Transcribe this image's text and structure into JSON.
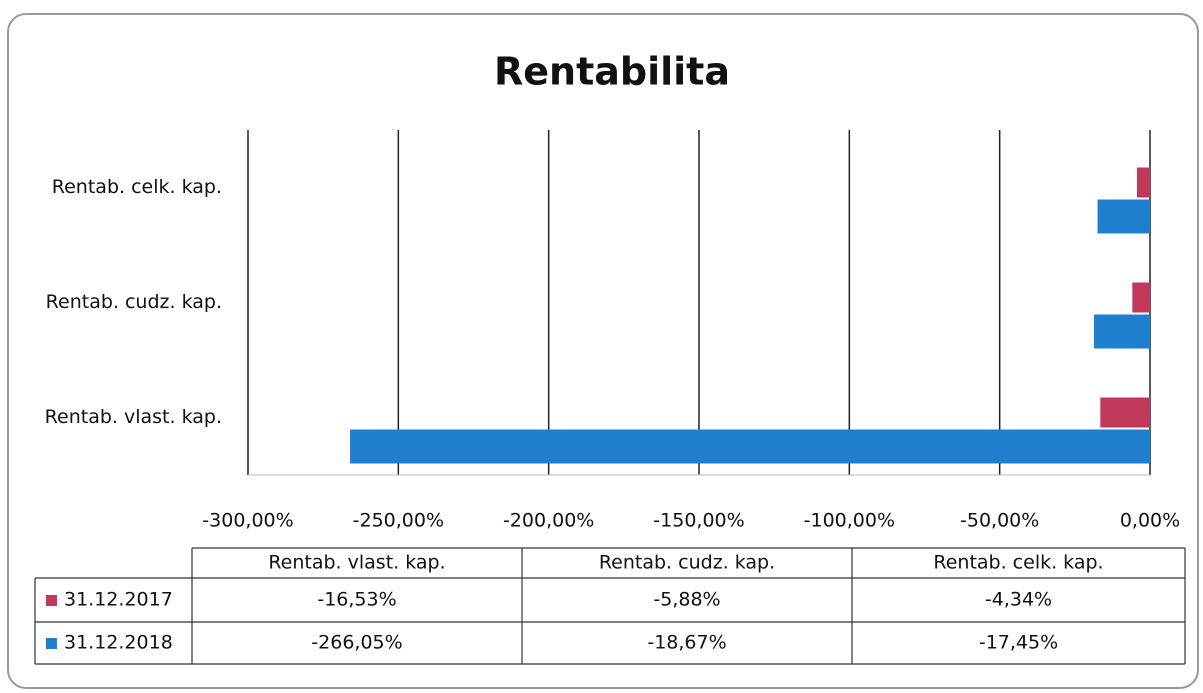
{
  "chart_data": {
    "type": "bar",
    "orientation": "horizontal",
    "title": "Rentabilita",
    "categories": [
      "Rentab. vlast. kap.",
      "Rentab. cudz. kap.",
      "Rentab. celk. kap."
    ],
    "series": [
      {
        "name": "31.12.2017",
        "color": "#c0395a",
        "values": [
          -16.53,
          -5.88,
          -4.34
        ],
        "value_labels": [
          "-16,53%",
          "-5,88%",
          "-4,34%"
        ]
      },
      {
        "name": "31.12.2018",
        "color": "#1f7fcf",
        "values": [
          -266.05,
          -18.67,
          -17.45
        ],
        "value_labels": [
          "-266,05%",
          "-18,67%",
          "-17,45%"
        ]
      }
    ],
    "xlim": [
      -300,
      0
    ],
    "xticks": [
      {
        "value": -300,
        "label": "-300,00%"
      },
      {
        "value": -250,
        "label": "-250,00%"
      },
      {
        "value": -200,
        "label": "-200,00%"
      },
      {
        "value": -150,
        "label": "-150,00%"
      },
      {
        "value": -100,
        "label": "-100,00%"
      },
      {
        "value": -50,
        "label": "-50,00%"
      },
      {
        "value": 0,
        "label": "0,00%"
      }
    ],
    "grid": true
  }
}
